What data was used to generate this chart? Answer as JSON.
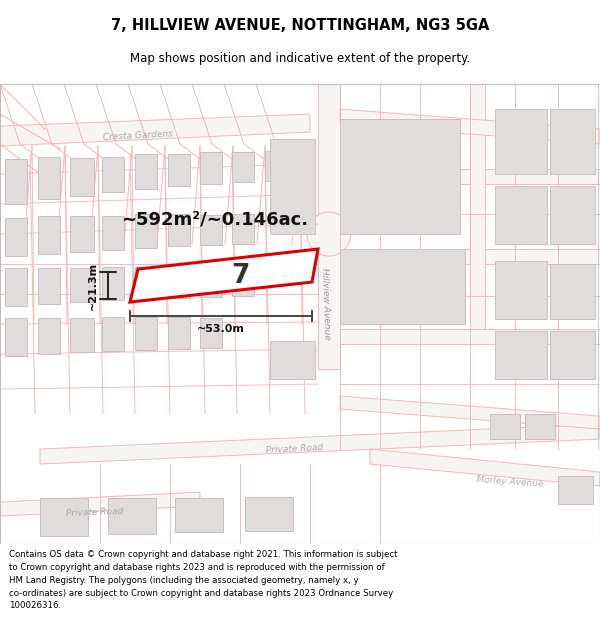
{
  "title": "7, HILLVIEW AVENUE, NOTTINGHAM, NG3 5GA",
  "subtitle": "Map shows position and indicative extent of the property.",
  "footer": "Contains OS data © Crown copyright and database right 2021. This information is subject\nto Crown copyright and database rights 2023 and is reproduced with the permission of\nHM Land Registry. The polygons (including the associated geometry, namely x, y\nco-ordinates) are subject to Crown copyright and database rights 2023 Ordnance Survey\n100026316.",
  "map_bg": "#f9f6f6",
  "road_line_color": "#f0b8b8",
  "road_fill": "#f5efef",
  "build_fill": "#e0dcdc",
  "build_ec": "#c8c0c0",
  "highlight_color": "#dd0000",
  "highlight_fill": "#ffffff",
  "dim_color": "#333333",
  "area_text": "~592m²/~0.146ac.",
  "property_number": "7",
  "dim_width": "~53.0m",
  "dim_height": "~21.3m",
  "street_hillview": "Hillview Avenue",
  "street_private1": "Private Road",
  "street_private2": "Private Road",
  "street_morley": "Morley Avenue",
  "street_cresta": "Cresta Gardens"
}
